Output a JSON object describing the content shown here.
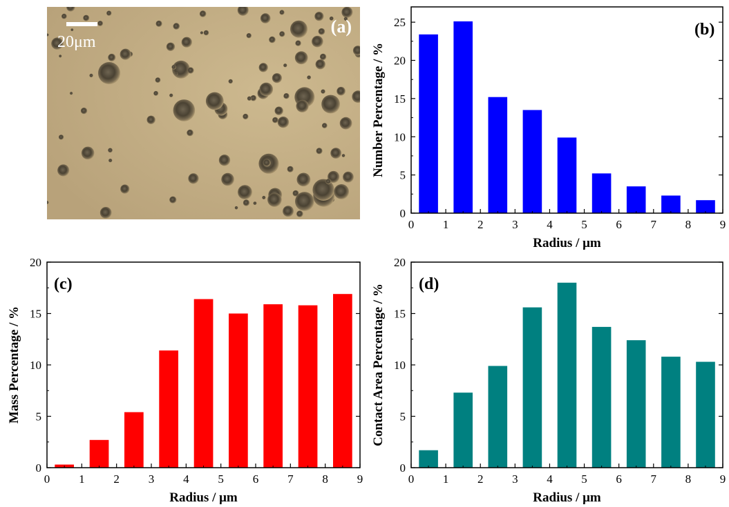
{
  "micrograph": {
    "panel_label": "(a)",
    "scale_bar_label": "20μm",
    "colors": {
      "background": "#b8a27a",
      "droplet_dark": "#4a4233",
      "droplet_rim": "#7a6c52"
    }
  },
  "chart_data": [
    {
      "id": "b",
      "panel_label": "(b)",
      "type": "bar",
      "xlabel": "Radius / μm",
      "ylabel": "Number Percentage / %",
      "xlim": [
        0,
        9
      ],
      "ylim": [
        0,
        27
      ],
      "xticks": [
        "0",
        "1",
        "2",
        "3",
        "4",
        "5",
        "6",
        "7",
        "8",
        "9"
      ],
      "yticks": [
        "0",
        "5",
        "10",
        "15",
        "20",
        "25"
      ],
      "x": [
        0.5,
        1.5,
        2.5,
        3.5,
        4.5,
        5.5,
        6.5,
        7.5,
        8.5
      ],
      "values": [
        23.4,
        25.1,
        15.2,
        13.5,
        9.9,
        5.2,
        3.5,
        2.3,
        1.7
      ],
      "bar_width": 0.55,
      "color": "#0000ff",
      "grid": false
    },
    {
      "id": "c",
      "panel_label": "(c)",
      "type": "bar",
      "xlabel": "Radius / μm",
      "ylabel": "Mass Percentage / %",
      "xlim": [
        0,
        9
      ],
      "ylim": [
        0,
        20
      ],
      "xticks": [
        "0",
        "1",
        "2",
        "3",
        "4",
        "5",
        "6",
        "7",
        "8",
        "9"
      ],
      "yticks": [
        "0",
        "5",
        "10",
        "15",
        "20"
      ],
      "x": [
        0.5,
        1.5,
        2.5,
        3.5,
        4.5,
        5.5,
        6.5,
        7.5,
        8.5
      ],
      "values": [
        0.3,
        2.7,
        5.4,
        11.4,
        16.4,
        15.0,
        15.9,
        15.8,
        16.9
      ],
      "bar_width": 0.55,
      "color": "#ff0000",
      "grid": false
    },
    {
      "id": "d",
      "panel_label": "(d)",
      "type": "bar",
      "xlabel": "Radius / μm",
      "ylabel": "Contact Area Percentage / %",
      "xlim": [
        0,
        9
      ],
      "ylim": [
        0,
        20
      ],
      "xticks": [
        "0",
        "1",
        "2",
        "3",
        "4",
        "5",
        "6",
        "7",
        "8",
        "9"
      ],
      "yticks": [
        "0",
        "5",
        "10",
        "15",
        "20"
      ],
      "x": [
        0.5,
        1.5,
        2.5,
        3.5,
        4.5,
        5.5,
        6.5,
        7.5,
        8.5
      ],
      "values": [
        1.7,
        7.3,
        9.9,
        15.6,
        18.0,
        13.7,
        12.4,
        10.8,
        10.3
      ],
      "bar_width": 0.55,
      "color": "#008080",
      "grid": false
    }
  ]
}
